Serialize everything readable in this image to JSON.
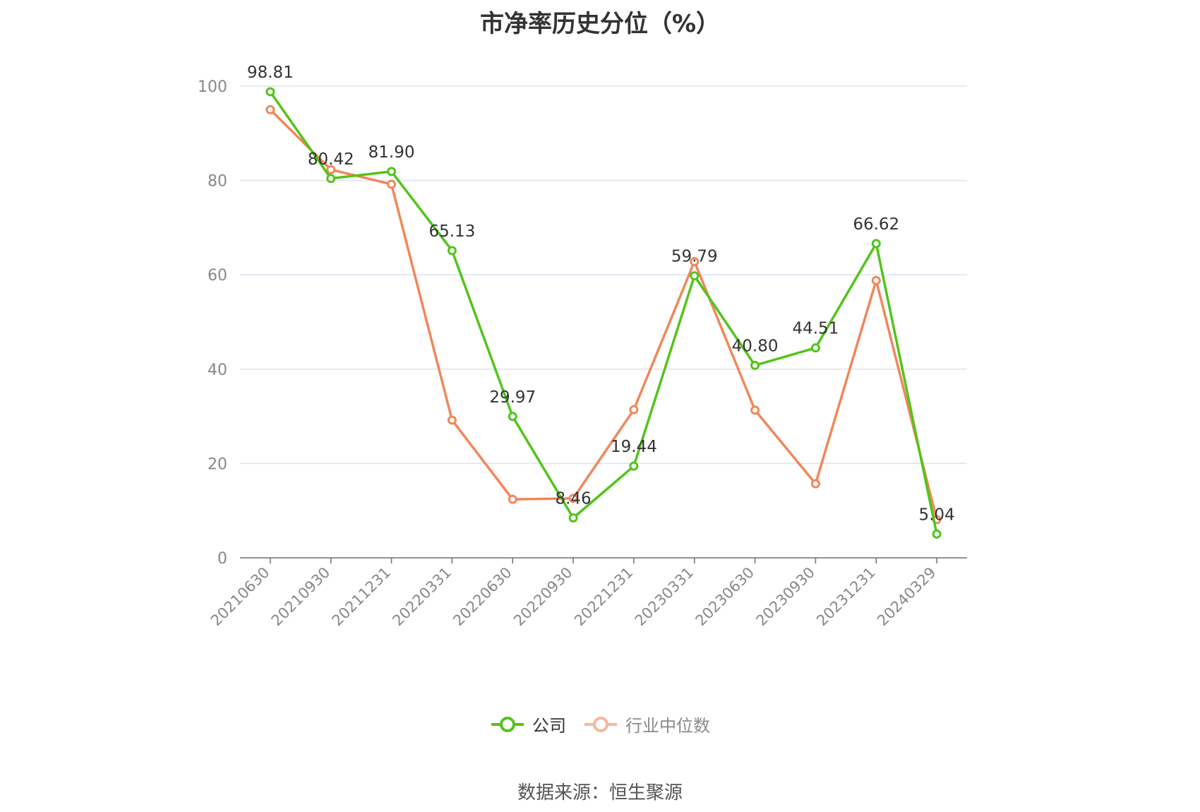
{
  "colors": {
    "company": "#52c41a",
    "industry": "#f0875a",
    "grid": "#dfe3f0",
    "axis": "#6e7079",
    "tick_text": "#888888",
    "label_text": "#333333"
  },
  "legend": {
    "items": [
      {
        "name": "公司",
        "color": "#52c41a"
      },
      {
        "name": "行业中位数",
        "color": "#f7b79c"
      }
    ]
  },
  "source": "数据来源：恒生聚源",
  "chart_data": {
    "type": "line",
    "title": "市净率历史分位（%）",
    "xlabel": "",
    "ylabel": "",
    "ylim": [
      0,
      100
    ],
    "yticks": [
      0,
      20,
      40,
      60,
      80,
      100
    ],
    "grid": true,
    "legend_position": "bottom",
    "categories": [
      "20210630",
      "20210930",
      "20211231",
      "20220331",
      "20220630",
      "20220930",
      "20221231",
      "20230331",
      "20230630",
      "20230930",
      "20231231",
      "20240329"
    ],
    "series": [
      {
        "name": "公司",
        "color": "#52c41a",
        "values": [
          98.81,
          80.42,
          81.9,
          65.13,
          29.97,
          8.46,
          19.44,
          59.79,
          40.8,
          44.51,
          66.62,
          5.04
        ],
        "labels": [
          "98.81",
          "80.42",
          "81.90",
          "65.13",
          "29.97",
          "8.46",
          "19.44",
          "59.79",
          "40.80",
          "44.51",
          "66.62",
          "5.04"
        ]
      },
      {
        "name": "行业中位数",
        "color": "#f0875a",
        "values": [
          95.0,
          82.3,
          79.2,
          29.2,
          12.4,
          12.6,
          31.4,
          62.8,
          31.3,
          15.7,
          58.8,
          8.1
        ]
      }
    ]
  }
}
